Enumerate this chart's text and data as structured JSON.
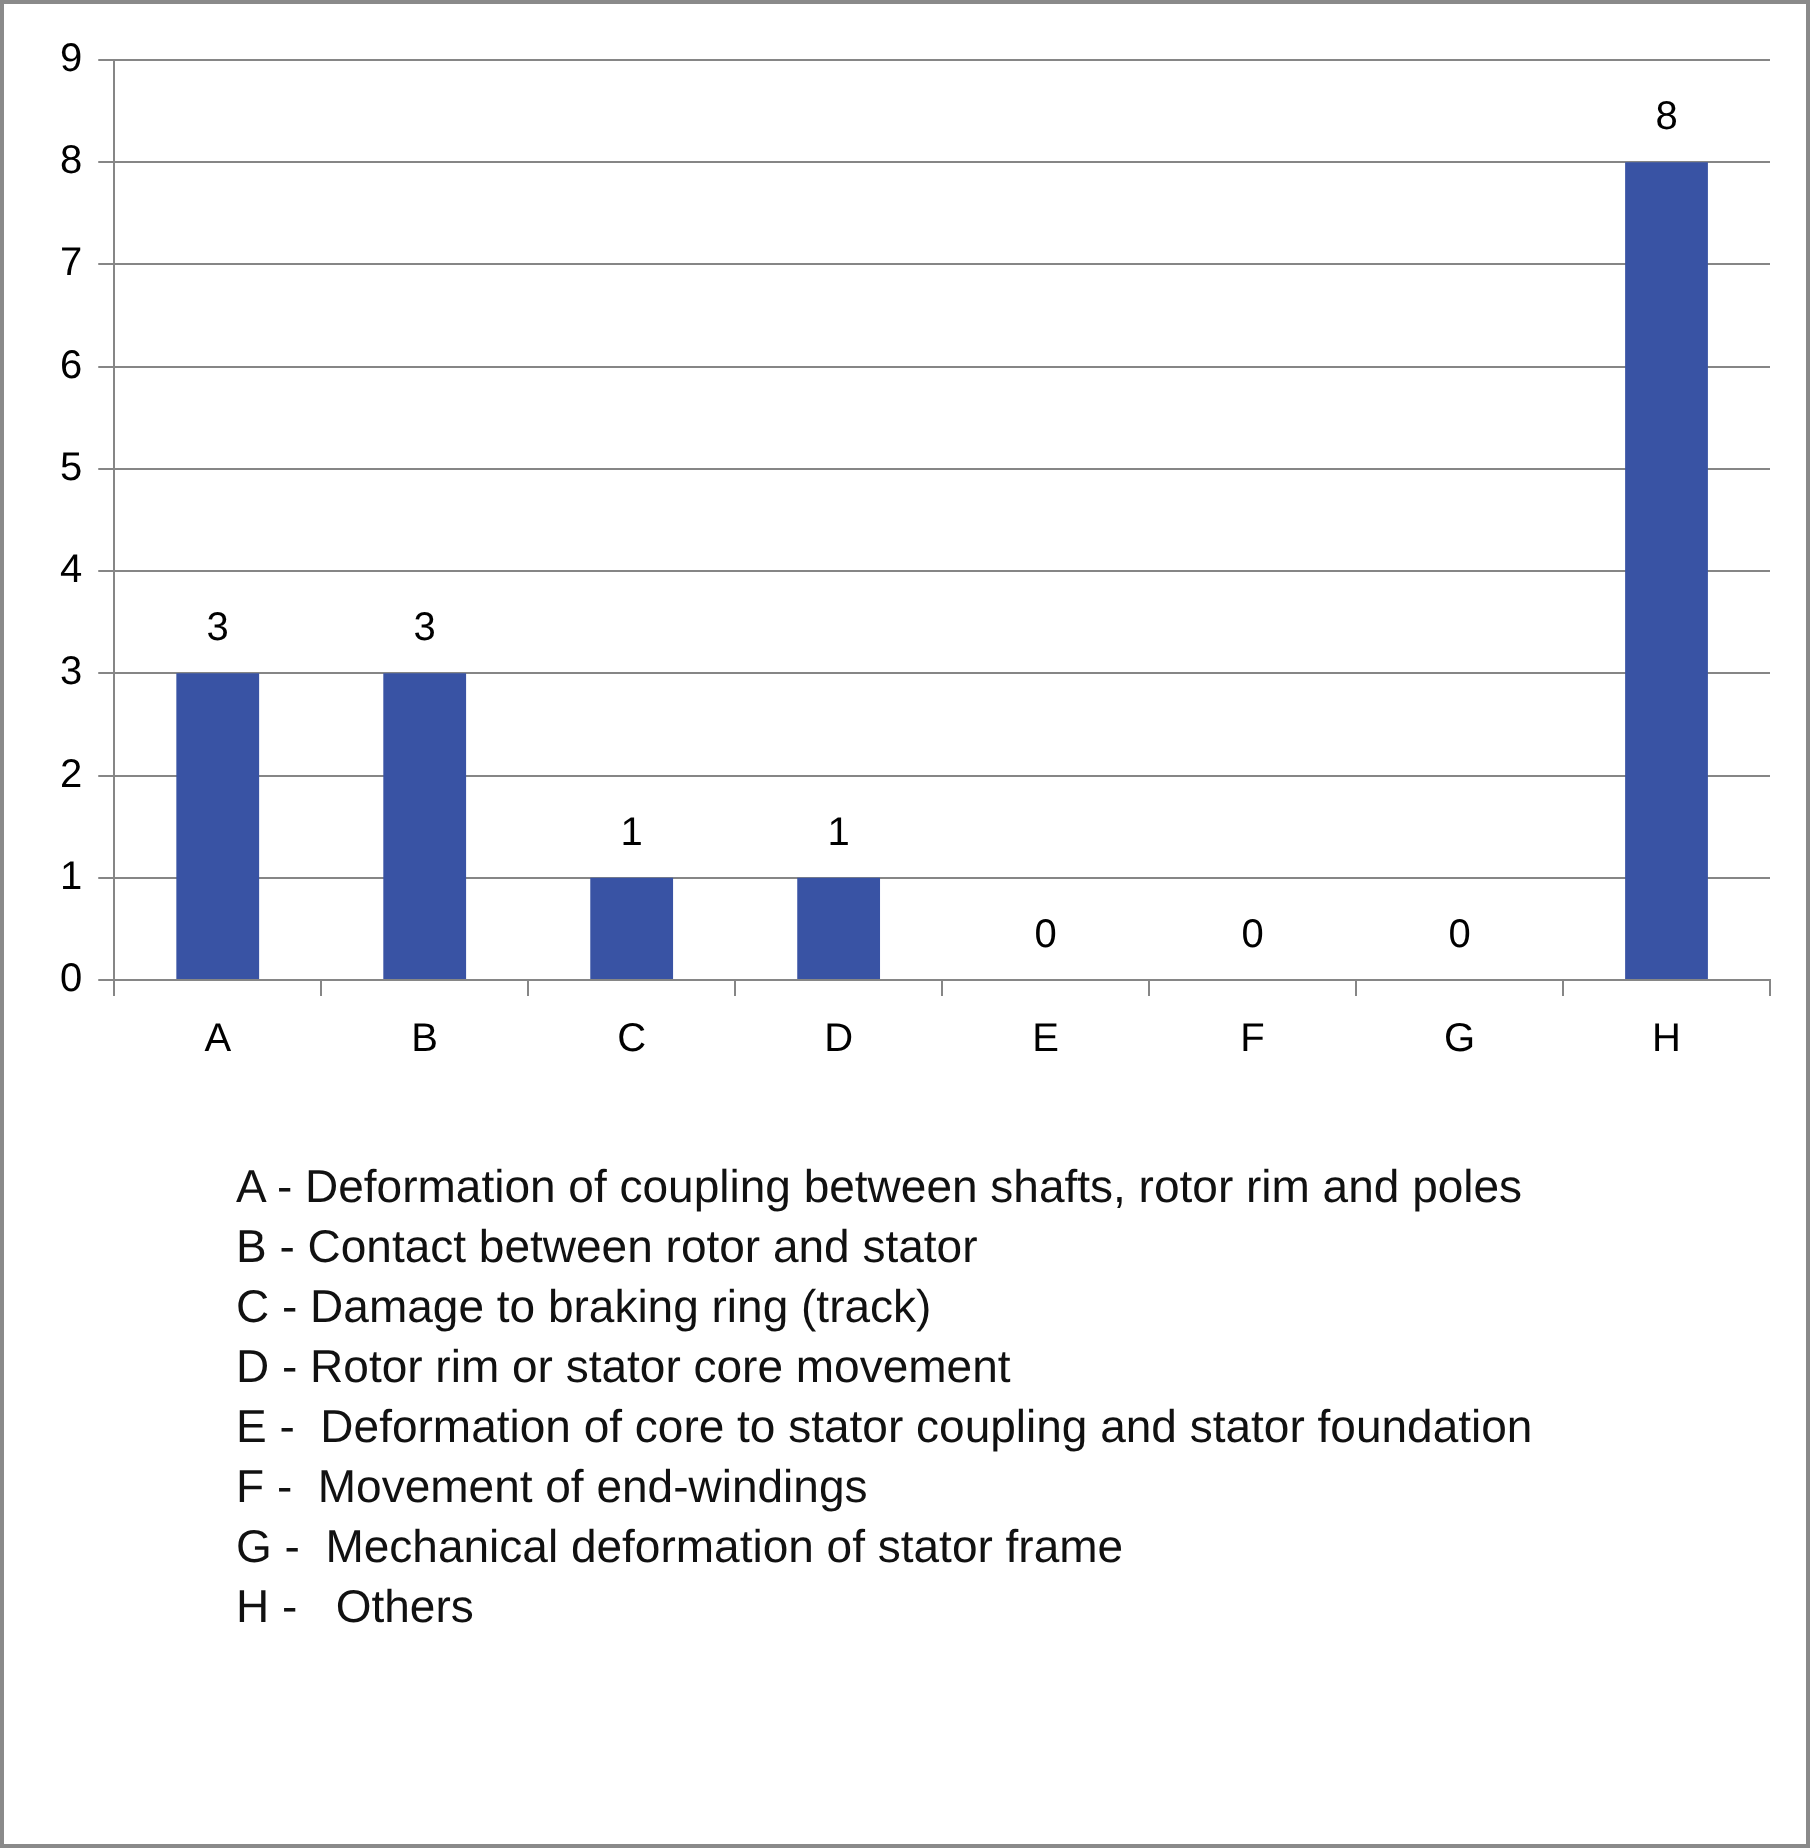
{
  "chart_data": {
    "type": "bar",
    "categories": [
      "A",
      "B",
      "C",
      "D",
      "E",
      "F",
      "G",
      "H"
    ],
    "values": [
      3,
      3,
      1,
      1,
      0,
      0,
      0,
      8
    ],
    "color": "#3953a4",
    "ylim": [
      0,
      9
    ],
    "yticks": [
      0,
      1,
      2,
      3,
      4,
      5,
      6,
      7,
      8,
      9
    ],
    "grid": "y",
    "data_labels": true,
    "legend": false,
    "annotations": [
      "A - Deformation of coupling between shafts, rotor rim and poles",
      "B - Contact between rotor and stator",
      "C - Damage to braking ring (track)",
      "D - Rotor rim or stator core movement",
      "E -  Deformation of core to stator coupling and stator foundation",
      "F -  Movement of end-windings",
      "G -  Mechanical deformation of stator frame",
      "H -   Others"
    ]
  }
}
